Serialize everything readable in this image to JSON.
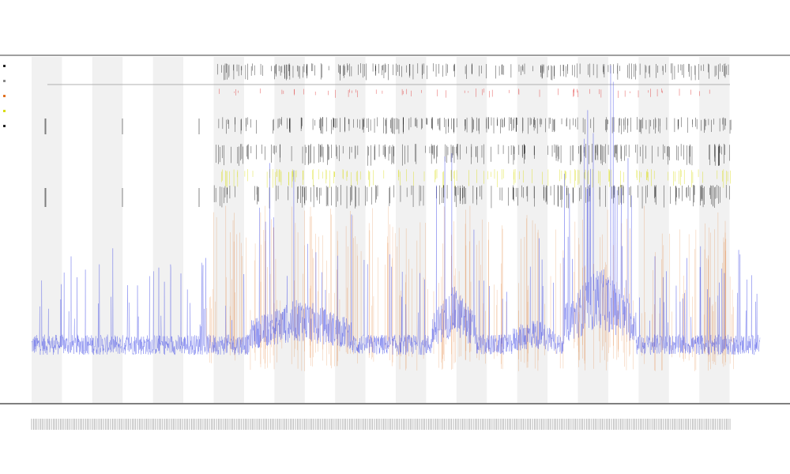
{
  "chart_data": {
    "type": "line",
    "title": "",
    "subtitle_1": "",
    "subtitle_2": "",
    "xlabel": "",
    "ylabel": "",
    "grid": true,
    "band_count": 12,
    "tick_count": 390,
    "series": [
      {
        "key": "main",
        "color": "#3d47e6",
        "style": "dense-line"
      },
      {
        "key": "spikes",
        "color": "#e07020",
        "style": "vertical-spikes"
      },
      {
        "key": "events_black",
        "color": "#111111",
        "style": "event-ticks"
      },
      {
        "key": "events_yellow",
        "color": "#d8dc10",
        "style": "event-ticks"
      },
      {
        "key": "events_red",
        "color": "#e03030",
        "style": "event-ticks"
      }
    ],
    "legend_entries": [
      "",
      "",
      "",
      "",
      ""
    ],
    "y_levels": {
      "baseline": 0.08,
      "peak_regions": [
        {
          "x_from": 0.3,
          "x_to": 0.44,
          "level": 0.17
        },
        {
          "x_from": 0.55,
          "x_to": 0.61,
          "level": 0.2
        },
        {
          "x_from": 0.73,
          "x_to": 0.83,
          "level": 0.25
        },
        {
          "x_from": 0.66,
          "x_to": 0.72,
          "level": 0.12
        }
      ]
    },
    "annotation": ""
  }
}
